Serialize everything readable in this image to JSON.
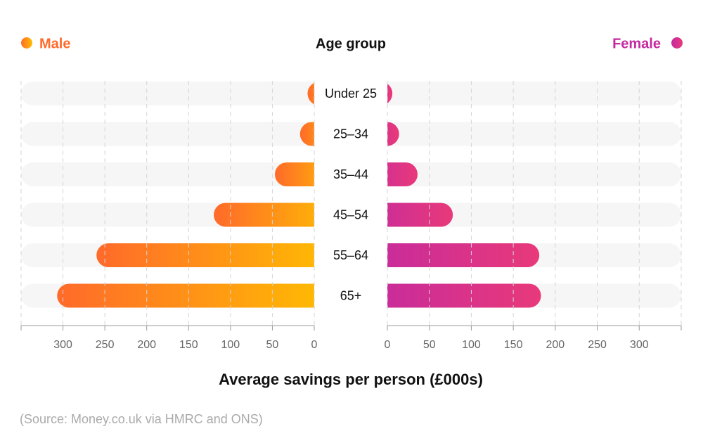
{
  "chart_data": {
    "type": "butterfly-bar",
    "category_label": "Age group",
    "x_label": "Average savings per person (£000s)",
    "source": "(Source: Money.co.uk via HMRC and ONS)",
    "categories": [
      "Under 25",
      "25–34",
      "35–44",
      "45–54",
      "55–64",
      "65+"
    ],
    "series": [
      {
        "name": "Male",
        "color": [
          "#ff6a2a",
          "#ffc000"
        ],
        "values": [
          8,
          17,
          47,
          120,
          260,
          307
        ]
      },
      {
        "name": "Female",
        "color": [
          "#c42a9f",
          "#e8397a"
        ],
        "values": [
          6,
          14,
          36,
          78,
          181,
          183
        ]
      }
    ],
    "xlim": [
      0,
      350
    ],
    "xticks": [
      0,
      50,
      100,
      150,
      200,
      250,
      300
    ],
    "grid": true
  }
}
